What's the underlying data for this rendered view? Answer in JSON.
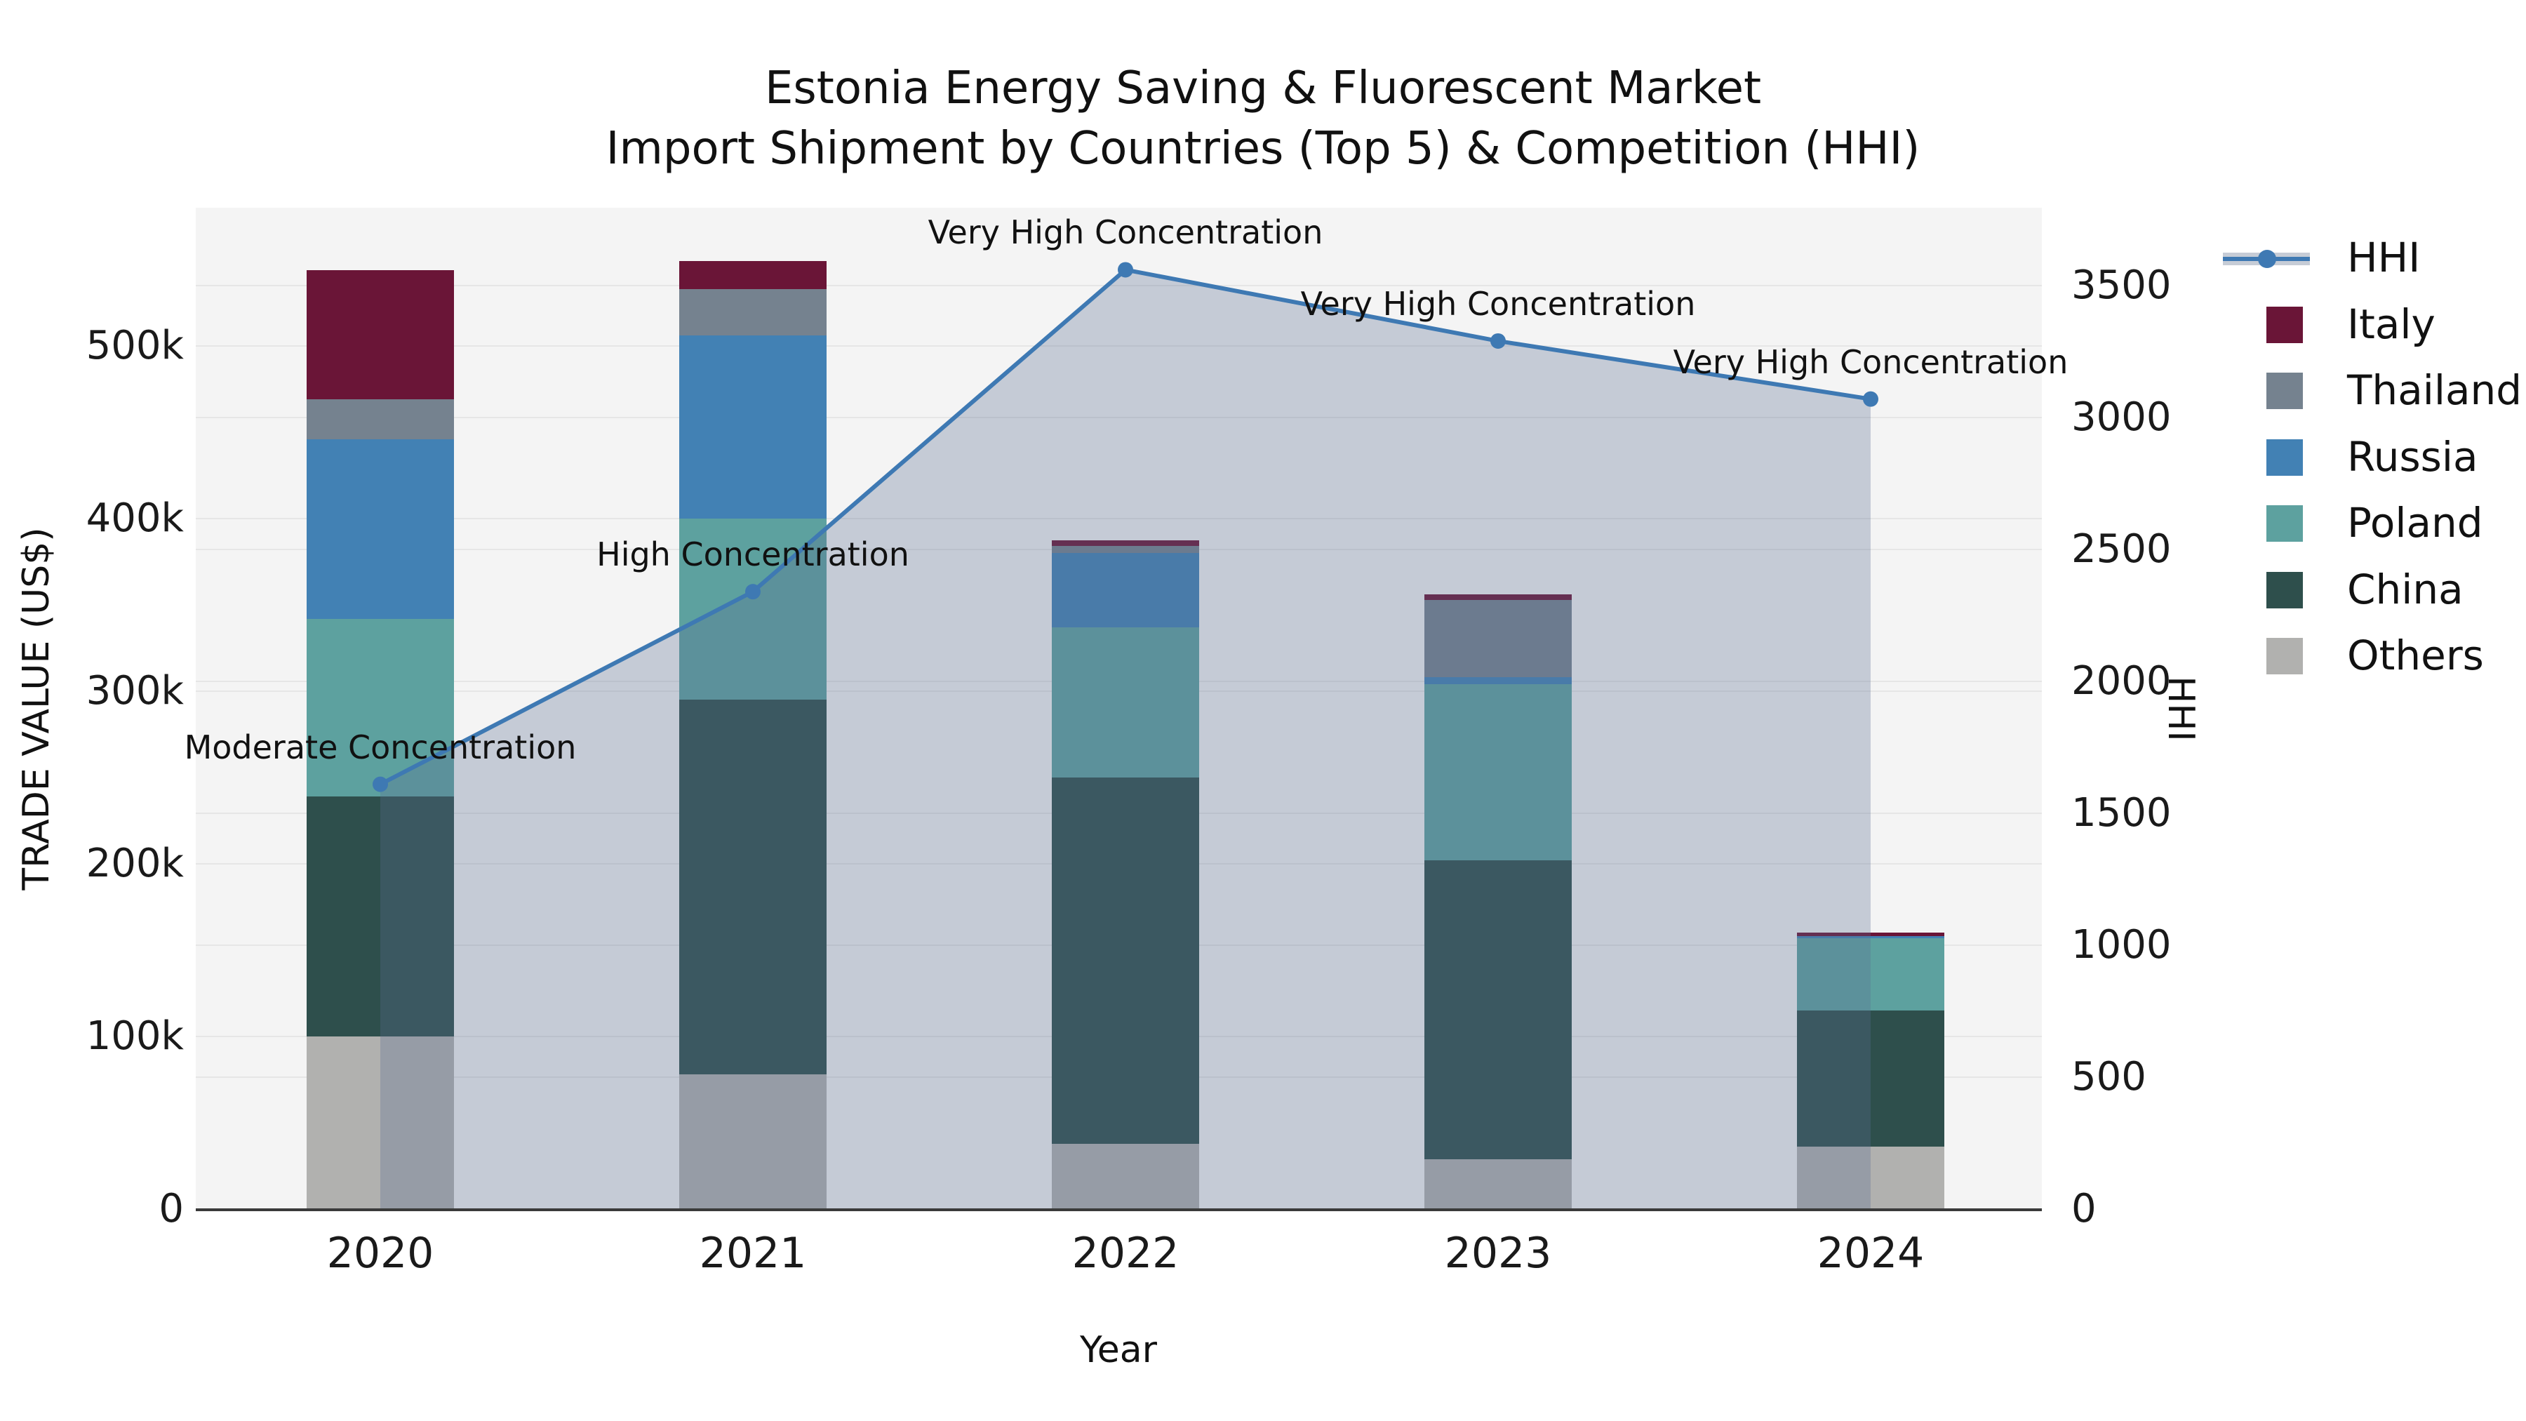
{
  "title": {
    "line1": "Estonia Energy Saving & Fluorescent Market",
    "line2": "Import Shipment by Countries (Top 5) & Competition (HHI)"
  },
  "axes": {
    "left": {
      "title": "TRADE VALUE (US$)",
      "ticks": [
        "0",
        "100k",
        "200k",
        "300k",
        "400k",
        "500k"
      ]
    },
    "right": {
      "title": "HHI",
      "ticks": [
        "0",
        "500",
        "1000",
        "1500",
        "2000",
        "2500",
        "3000",
        "3500"
      ]
    },
    "x": {
      "title": "Year",
      "ticks": [
        "2020",
        "2021",
        "2022",
        "2023",
        "2024"
      ]
    }
  },
  "legend": {
    "items": [
      {
        "label": "HHI",
        "type": "line",
        "color": "#3e79b3",
        "band_color": "#c6ccd6"
      },
      {
        "label": "Italy",
        "type": "swatch",
        "color": "#6a1537"
      },
      {
        "label": "Thailand",
        "type": "swatch",
        "color": "#75828f"
      },
      {
        "label": "Russia",
        "type": "swatch",
        "color": "#4281b4"
      },
      {
        "label": "Poland",
        "type": "swatch",
        "color": "#5da19f"
      },
      {
        "label": "China",
        "type": "swatch",
        "color": "#2e4f4c"
      },
      {
        "label": "Others",
        "type": "swatch",
        "color": "#b1b1af"
      }
    ]
  },
  "chart_data": {
    "type": "bar+line dual-axis (stacked bars, secondary-axis line with area fill)",
    "title": "Estonia Energy Saving & Fluorescent Market — Import Shipment by Countries (Top 5) & Competition (HHI)",
    "categories": [
      "2020",
      "2021",
      "2022",
      "2023",
      "2024"
    ],
    "xlabel": "Year",
    "left_axis": {
      "label": "TRADE VALUE (US$)",
      "range": [
        0,
        580000
      ],
      "grid": true
    },
    "right_axis": {
      "label": "HHI",
      "range": [
        0,
        3795
      ],
      "grid": true
    },
    "bar_series": [
      {
        "name": "Others",
        "color": "#b1b1af",
        "values_usd": [
          100000,
          78000,
          38000,
          29000,
          36000
        ]
      },
      {
        "name": "China",
        "color": "#2e4f4c",
        "values_usd": [
          139000,
          217000,
          212000,
          173000,
          79000
        ]
      },
      {
        "name": "Poland",
        "color": "#5da19f",
        "values_usd": [
          103000,
          105000,
          87000,
          102000,
          42000
        ]
      },
      {
        "name": "Russia",
        "color": "#4281b4",
        "values_usd": [
          104000,
          106000,
          43000,
          4000,
          1000
        ]
      },
      {
        "name": "Thailand",
        "color": "#75828f",
        "values_usd": [
          23000,
          27000,
          4000,
          45000,
          0
        ]
      },
      {
        "name": "Italy",
        "color": "#6a1537",
        "values_usd": [
          75000,
          16000,
          3500,
          3000,
          2000
        ]
      }
    ],
    "bar_totals_usd": [
      544000,
      549000,
      387500,
      356000,
      160000
    ],
    "line_series": {
      "name": "HHI",
      "color": "#3e79b3",
      "area_fill_color": "rgba(90,110,145,0.30)",
      "values": [
        1610,
        2340,
        3560,
        3290,
        3070
      ]
    },
    "annotations": [
      {
        "year": "2020",
        "text": "Moderate Concentration"
      },
      {
        "year": "2021",
        "text": "High Concentration"
      },
      {
        "year": "2022",
        "text": "Very High Concentration"
      },
      {
        "year": "2023",
        "text": "Very High Concentration"
      },
      {
        "year": "2024",
        "text": "Very High Concentration"
      }
    ],
    "legend_position": "right"
  }
}
